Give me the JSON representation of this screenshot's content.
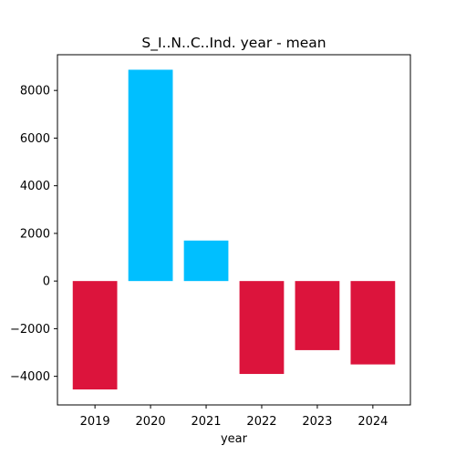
{
  "chart_data": {
    "type": "bar",
    "title": "S_I..N..C..Ind. year - mean",
    "xlabel": "year",
    "ylabel": "",
    "categories": [
      "2019",
      "2020",
      "2021",
      "2022",
      "2023",
      "2024"
    ],
    "values": [
      -4550,
      8870,
      1700,
      -3900,
      -2900,
      -3500
    ],
    "ylim": [
      -5200,
      9500
    ],
    "yticks": [
      -4000,
      -2000,
      0,
      2000,
      4000,
      6000,
      8000
    ],
    "ytick_labels": [
      "−4000",
      "−2000",
      "0",
      "2000",
      "4000",
      "6000",
      "8000"
    ],
    "grid": false,
    "colors": {
      "positive": "#00bfff",
      "negative": "#dc143c"
    }
  }
}
